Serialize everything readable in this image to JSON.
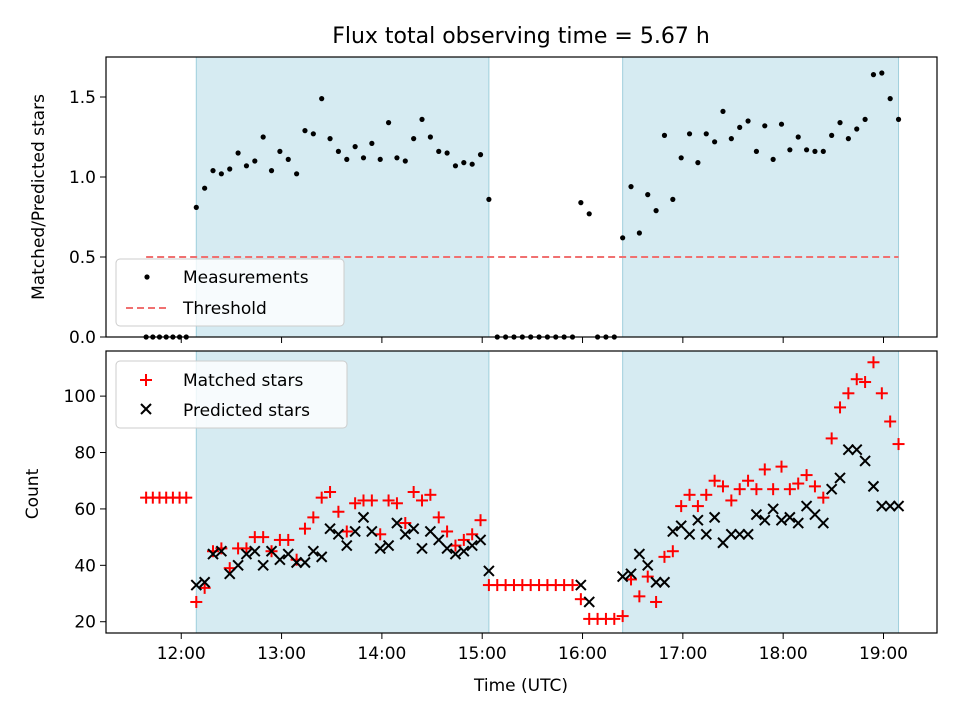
{
  "title": "Flux total observing time = 5.67 h",
  "chart_data": [
    {
      "type": "scatter",
      "ylabel": "Matched/Predicted stars",
      "xlabel": "",
      "xlim": [
        "11:15",
        "19:32"
      ],
      "ylim": [
        0,
        1.75
      ],
      "yticks": [
        "0.0",
        "0.5",
        "1.0",
        "1.5"
      ],
      "shaded_intervals": [
        [
          "12:09",
          "15:04"
        ],
        [
          "16:24",
          "19:09"
        ]
      ],
      "legend": {
        "position": "lower-left",
        "entries": [
          "Measurements",
          "Threshold"
        ]
      },
      "threshold": {
        "name": "Threshold",
        "value": 0.5,
        "x": [
          "11:39",
          "19:09"
        ],
        "color": "#f07070"
      },
      "series": [
        {
          "name": "Measurements",
          "color": "#000000",
          "points": [
            [
              "11:39",
              0
            ],
            [
              "11:43",
              0
            ],
            [
              "11:47",
              0
            ],
            [
              "11:51",
              0
            ],
            [
              "11:55",
              0
            ],
            [
              "11:59",
              0
            ],
            [
              "12:03",
              0
            ],
            [
              "12:09",
              0.81
            ],
            [
              "12:14",
              0.93
            ],
            [
              "12:19",
              1.04
            ],
            [
              "12:24",
              1.02
            ],
            [
              "12:29",
              1.05
            ],
            [
              "12:34",
              1.15
            ],
            [
              "12:39",
              1.07
            ],
            [
              "12:44",
              1.1
            ],
            [
              "12:49",
              1.25
            ],
            [
              "12:54",
              1.04
            ],
            [
              "12:59",
              1.16
            ],
            [
              "13:04",
              1.11
            ],
            [
              "13:09",
              1.02
            ],
            [
              "13:14",
              1.29
            ],
            [
              "13:19",
              1.27
            ],
            [
              "13:24",
              1.49
            ],
            [
              "13:29",
              1.24
            ],
            [
              "13:34",
              1.16
            ],
            [
              "13:39",
              1.11
            ],
            [
              "13:44",
              1.19
            ],
            [
              "13:49",
              1.12
            ],
            [
              "13:54",
              1.21
            ],
            [
              "13:59",
              1.11
            ],
            [
              "14:04",
              1.34
            ],
            [
              "14:09",
              1.12
            ],
            [
              "14:14",
              1.1
            ],
            [
              "14:19",
              1.24
            ],
            [
              "14:24",
              1.36
            ],
            [
              "14:29",
              1.25
            ],
            [
              "14:34",
              1.16
            ],
            [
              "14:39",
              1.15
            ],
            [
              "14:44",
              1.07
            ],
            [
              "14:49",
              1.09
            ],
            [
              "14:54",
              1.08
            ],
            [
              "14:59",
              1.14
            ],
            [
              "15:04",
              0.86
            ],
            [
              "15:09",
              0
            ],
            [
              "15:14",
              0
            ],
            [
              "15:19",
              0
            ],
            [
              "15:24",
              0
            ],
            [
              "15:29",
              0
            ],
            [
              "15:34",
              0
            ],
            [
              "15:39",
              0
            ],
            [
              "15:44",
              0
            ],
            [
              "15:49",
              0
            ],
            [
              "15:54",
              0
            ],
            [
              "15:59",
              0.84
            ],
            [
              "16:04",
              0.77
            ],
            [
              "16:09",
              0
            ],
            [
              "16:14",
              0
            ],
            [
              "16:19",
              0
            ],
            [
              "16:24",
              0.62
            ],
            [
              "16:29",
              0.94
            ],
            [
              "16:34",
              0.65
            ],
            [
              "16:39",
              0.89
            ],
            [
              "16:44",
              0.79
            ],
            [
              "16:49",
              1.26
            ],
            [
              "16:54",
              0.86
            ],
            [
              "16:59",
              1.12
            ],
            [
              "17:04",
              1.27
            ],
            [
              "17:09",
              1.09
            ],
            [
              "17:14",
              1.27
            ],
            [
              "17:19",
              1.22
            ],
            [
              "17:24",
              1.41
            ],
            [
              "17:29",
              1.24
            ],
            [
              "17:34",
              1.31
            ],
            [
              "17:39",
              1.35
            ],
            [
              "17:44",
              1.16
            ],
            [
              "17:49",
              1.32
            ],
            [
              "17:54",
              1.11
            ],
            [
              "17:59",
              1.33
            ],
            [
              "18:04",
              1.17
            ],
            [
              "18:09",
              1.25
            ],
            [
              "18:14",
              1.17
            ],
            [
              "18:19",
              1.16
            ],
            [
              "18:24",
              1.16
            ],
            [
              "18:29",
              1.26
            ],
            [
              "18:34",
              1.34
            ],
            [
              "18:39",
              1.24
            ],
            [
              "18:44",
              1.3
            ],
            [
              "18:49",
              1.36
            ],
            [
              "18:54",
              1.64
            ],
            [
              "18:59",
              1.65
            ],
            [
              "19:04",
              1.49
            ],
            [
              "19:09",
              1.36
            ]
          ]
        }
      ]
    },
    {
      "type": "scatter",
      "xlabel": "Time (UTC)",
      "ylabel": "Count",
      "xlim": [
        "11:15",
        "19:32"
      ],
      "ylim": [
        16,
        116
      ],
      "yticks": [
        "20",
        "40",
        "60",
        "80",
        "100"
      ],
      "xticks": [
        "12:00",
        "13:00",
        "14:00",
        "15:00",
        "16:00",
        "17:00",
        "18:00",
        "19:00"
      ],
      "shaded_intervals": [
        [
          "12:09",
          "15:04"
        ],
        [
          "16:24",
          "19:09"
        ]
      ],
      "legend": {
        "position": "top-left",
        "entries": [
          "Matched stars",
          "Predicted stars"
        ]
      },
      "series": [
        {
          "name": "Matched stars",
          "color": "#ff0000",
          "marker": "+",
          "points": [
            [
              "11:39",
              64
            ],
            [
              "11:43",
              64
            ],
            [
              "11:47",
              64
            ],
            [
              "11:51",
              64
            ],
            [
              "11:55",
              64
            ],
            [
              "11:59",
              64
            ],
            [
              "12:03",
              64
            ],
            [
              "12:09",
              27
            ],
            [
              "12:14",
              32
            ],
            [
              "12:19",
              45
            ],
            [
              "12:24",
              46
            ],
            [
              "12:29",
              39
            ],
            [
              "12:34",
              46
            ],
            [
              "12:39",
              46
            ],
            [
              "12:44",
              50
            ],
            [
              "12:49",
              50
            ],
            [
              "12:54",
              45
            ],
            [
              "12:59",
              49
            ],
            [
              "13:04",
              49
            ],
            [
              "13:09",
              42
            ],
            [
              "13:14",
              53
            ],
            [
              "13:19",
              57
            ],
            [
              "13:24",
              64
            ],
            [
              "13:29",
              66
            ],
            [
              "13:34",
              59
            ],
            [
              "13:39",
              52
            ],
            [
              "13:44",
              62
            ],
            [
              "13:49",
              63
            ],
            [
              "13:54",
              63
            ],
            [
              "13:59",
              51
            ],
            [
              "14:04",
              63
            ],
            [
              "14:09",
              62
            ],
            [
              "14:14",
              55
            ],
            [
              "14:19",
              66
            ],
            [
              "14:24",
              63
            ],
            [
              "14:29",
              65
            ],
            [
              "14:34",
              57
            ],
            [
              "14:39",
              52
            ],
            [
              "14:44",
              47
            ],
            [
              "14:49",
              49
            ],
            [
              "14:54",
              51
            ],
            [
              "14:59",
              56
            ],
            [
              "15:04",
              33
            ],
            [
              "15:09",
              33
            ],
            [
              "15:14",
              33
            ],
            [
              "15:19",
              33
            ],
            [
              "15:24",
              33
            ],
            [
              "15:29",
              33
            ],
            [
              "15:34",
              33
            ],
            [
              "15:39",
              33
            ],
            [
              "15:44",
              33
            ],
            [
              "15:49",
              33
            ],
            [
              "15:54",
              33
            ],
            [
              "15:59",
              28
            ],
            [
              "16:04",
              21
            ],
            [
              "16:09",
              21
            ],
            [
              "16:14",
              21
            ],
            [
              "16:19",
              21
            ],
            [
              "16:24",
              22
            ],
            [
              "16:29",
              35
            ],
            [
              "16:34",
              29
            ],
            [
              "16:39",
              36
            ],
            [
              "16:44",
              27
            ],
            [
              "16:49",
              43
            ],
            [
              "16:54",
              45
            ],
            [
              "16:59",
              61
            ],
            [
              "17:04",
              65
            ],
            [
              "17:09",
              61
            ],
            [
              "17:14",
              65
            ],
            [
              "17:19",
              70
            ],
            [
              "17:24",
              68
            ],
            [
              "17:29",
              63
            ],
            [
              "17:34",
              67
            ],
            [
              "17:39",
              70
            ],
            [
              "17:44",
              67
            ],
            [
              "17:49",
              74
            ],
            [
              "17:54",
              67
            ],
            [
              "17:59",
              75
            ],
            [
              "18:04",
              67
            ],
            [
              "18:09",
              69
            ],
            [
              "18:14",
              72
            ],
            [
              "18:19",
              68
            ],
            [
              "18:24",
              64
            ],
            [
              "18:29",
              85
            ],
            [
              "18:34",
              96
            ],
            [
              "18:39",
              101
            ],
            [
              "18:44",
              106
            ],
            [
              "18:49",
              105
            ],
            [
              "18:54",
              112
            ],
            [
              "18:59",
              101
            ],
            [
              "19:04",
              91
            ],
            [
              "19:09",
              83
            ]
          ]
        },
        {
          "name": "Predicted stars",
          "color": "#000000",
          "marker": "x",
          "points": [
            [
              "12:09",
              33
            ],
            [
              "12:14",
              34
            ],
            [
              "12:19",
              44
            ],
            [
              "12:24",
              45
            ],
            [
              "12:29",
              37
            ],
            [
              "12:34",
              40
            ],
            [
              "12:39",
              44
            ],
            [
              "12:44",
              45
            ],
            [
              "12:49",
              40
            ],
            [
              "12:54",
              45
            ],
            [
              "12:59",
              42
            ],
            [
              "13:04",
              44
            ],
            [
              "13:09",
              41
            ],
            [
              "13:14",
              41
            ],
            [
              "13:19",
              45
            ],
            [
              "13:24",
              43
            ],
            [
              "13:29",
              53
            ],
            [
              "13:34",
              51
            ],
            [
              "13:39",
              47
            ],
            [
              "13:44",
              52
            ],
            [
              "13:49",
              57
            ],
            [
              "13:54",
              52
            ],
            [
              "13:59",
              46
            ],
            [
              "14:04",
              47
            ],
            [
              "14:09",
              55
            ],
            [
              "14:14",
              51
            ],
            [
              "14:19",
              53
            ],
            [
              "14:24",
              46
            ],
            [
              "14:29",
              52
            ],
            [
              "14:34",
              49
            ],
            [
              "14:39",
              46
            ],
            [
              "14:44",
              44
            ],
            [
              "14:49",
              45
            ],
            [
              "14:54",
              47
            ],
            [
              "14:59",
              49
            ],
            [
              "15:04",
              38
            ],
            [
              "15:59",
              33
            ],
            [
              "16:04",
              27
            ],
            [
              "16:24",
              36
            ],
            [
              "16:29",
              37
            ],
            [
              "16:34",
              44
            ],
            [
              "16:39",
              40
            ],
            [
              "16:44",
              34
            ],
            [
              "16:49",
              34
            ],
            [
              "16:54",
              52
            ],
            [
              "16:59",
              54
            ],
            [
              "17:04",
              51
            ],
            [
              "17:09",
              56
            ],
            [
              "17:14",
              51
            ],
            [
              "17:19",
              57
            ],
            [
              "17:24",
              48
            ],
            [
              "17:29",
              51
            ],
            [
              "17:34",
              51
            ],
            [
              "17:39",
              51
            ],
            [
              "17:44",
              58
            ],
            [
              "17:49",
              56
            ],
            [
              "17:54",
              60
            ],
            [
              "17:59",
              56
            ],
            [
              "18:04",
              57
            ],
            [
              "18:09",
              55
            ],
            [
              "18:14",
              61
            ],
            [
              "18:19",
              58
            ],
            [
              "18:24",
              55
            ],
            [
              "18:29",
              67
            ],
            [
              "18:34",
              71
            ],
            [
              "18:39",
              81
            ],
            [
              "18:44",
              81
            ],
            [
              "18:49",
              77
            ],
            [
              "18:54",
              68
            ],
            [
              "18:59",
              61
            ],
            [
              "19:04",
              61
            ],
            [
              "19:09",
              61
            ]
          ]
        }
      ]
    }
  ]
}
